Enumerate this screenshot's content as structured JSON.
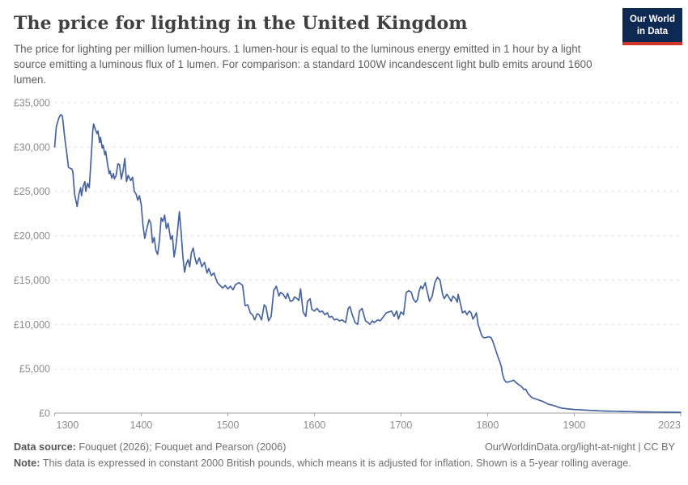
{
  "header": {
    "title": "The price for lighting in the United Kingdom",
    "subtitle": "The price for lighting per million lumen-hours. 1 lumen-hour is equal to the luminous energy emitted in 1 hour by a light source emitting a luminous flux of 1 lumen. For comparison: a standard 100W incandescent light bulb emits around 1600 lumen.",
    "logo": {
      "line1": "Our World",
      "line2": "in Data",
      "bg_color": "#0f2a52",
      "bar_color": "#d0362a"
    }
  },
  "chart_data": {
    "type": "line",
    "title": "The price for lighting in the United Kingdom",
    "xlabel": "",
    "ylabel": "",
    "unit": "constant 2000 British pounds per million lumen-hours",
    "xlim": [
      1300,
      2023
    ],
    "ylim": [
      0,
      35000
    ],
    "yticks": [
      0,
      5000,
      10000,
      15000,
      20000,
      25000,
      30000,
      35000
    ],
    "xticks": [
      1300,
      1400,
      1500,
      1600,
      1700,
      1800,
      1900,
      2023
    ],
    "grid": "dashed-horizontal",
    "legend": "none",
    "line_color": "#4664a0",
    "grid_color": "#dcdcdc",
    "axis_color": "#a2a2a2",
    "tick_color": "#8c8c8c",
    "series": [
      {
        "name": "Price of lighting in the United Kingdom",
        "points": [
          [
            1300,
            30000
          ],
          [
            1302,
            32300
          ],
          [
            1305,
            33300
          ],
          [
            1307,
            33650
          ],
          [
            1309,
            33500
          ],
          [
            1312,
            30800
          ],
          [
            1314,
            29300
          ],
          [
            1316,
            27700
          ],
          [
            1318,
            27600
          ],
          [
            1320,
            27500
          ],
          [
            1321,
            27200
          ],
          [
            1323,
            24700
          ],
          [
            1326,
            23300
          ],
          [
            1328,
            24700
          ],
          [
            1330,
            25400
          ],
          [
            1331,
            24500
          ],
          [
            1333,
            25600
          ],
          [
            1335,
            26100
          ],
          [
            1336,
            25000
          ],
          [
            1338,
            25900
          ],
          [
            1340,
            25400
          ],
          [
            1342,
            28500
          ],
          [
            1344,
            31800
          ],
          [
            1345,
            32600
          ],
          [
            1347,
            32000
          ],
          [
            1349,
            31500
          ],
          [
            1350,
            31800
          ],
          [
            1352,
            30500
          ],
          [
            1353,
            31100
          ],
          [
            1355,
            29900
          ],
          [
            1356,
            30200
          ],
          [
            1358,
            29100
          ],
          [
            1359,
            29500
          ],
          [
            1361,
            28100
          ],
          [
            1363,
            27000
          ],
          [
            1364,
            27300
          ],
          [
            1366,
            26500
          ],
          [
            1368,
            27000
          ],
          [
            1369,
            26400
          ],
          [
            1371,
            26800
          ],
          [
            1373,
            28100
          ],
          [
            1375,
            28000
          ],
          [
            1377,
            26400
          ],
          [
            1379,
            27300
          ],
          [
            1381,
            28700
          ],
          [
            1383,
            26100
          ],
          [
            1385,
            26800
          ],
          [
            1388,
            26200
          ],
          [
            1390,
            26600
          ],
          [
            1392,
            25000
          ],
          [
            1394,
            24700
          ],
          [
            1396,
            24000
          ],
          [
            1398,
            24500
          ],
          [
            1400,
            23500
          ],
          [
            1402,
            21200
          ],
          [
            1404,
            19700
          ],
          [
            1406,
            20600
          ],
          [
            1409,
            21800
          ],
          [
            1411,
            21400
          ],
          [
            1413,
            19200
          ],
          [
            1415,
            19800
          ],
          [
            1417,
            18300
          ],
          [
            1419,
            17900
          ],
          [
            1421,
            19500
          ],
          [
            1423,
            22000
          ],
          [
            1425,
            21600
          ],
          [
            1427,
            22300
          ],
          [
            1429,
            20800
          ],
          [
            1431,
            21400
          ],
          [
            1434,
            19600
          ],
          [
            1436,
            20000
          ],
          [
            1438,
            17600
          ],
          [
            1440,
            18800
          ],
          [
            1442,
            20600
          ],
          [
            1444,
            22700
          ],
          [
            1446,
            20500
          ],
          [
            1448,
            17800
          ],
          [
            1450,
            15900
          ],
          [
            1452,
            16800
          ],
          [
            1454,
            17300
          ],
          [
            1456,
            16500
          ],
          [
            1458,
            18100
          ],
          [
            1460,
            18600
          ],
          [
            1462,
            17500
          ],
          [
            1464,
            16800
          ],
          [
            1467,
            17500
          ],
          [
            1470,
            16500
          ],
          [
            1473,
            17000
          ],
          [
            1476,
            15800
          ],
          [
            1478,
            16300
          ],
          [
            1481,
            15500
          ],
          [
            1484,
            15800
          ],
          [
            1486,
            15200
          ],
          [
            1488,
            14700
          ],
          [
            1491,
            14400
          ],
          [
            1494,
            14100
          ],
          [
            1497,
            14400
          ],
          [
            1500,
            14000
          ],
          [
            1503,
            14300
          ],
          [
            1506,
            13900
          ],
          [
            1509,
            14500
          ],
          [
            1513,
            14700
          ],
          [
            1517,
            14400
          ],
          [
            1520,
            12100
          ],
          [
            1523,
            12200
          ],
          [
            1526,
            11300
          ],
          [
            1529,
            11000
          ],
          [
            1531,
            10500
          ],
          [
            1534,
            11200
          ],
          [
            1536,
            11100
          ],
          [
            1539,
            10500
          ],
          [
            1542,
            12200
          ],
          [
            1544,
            12000
          ],
          [
            1547,
            10400
          ],
          [
            1550,
            10900
          ],
          [
            1553,
            13800
          ],
          [
            1556,
            14300
          ],
          [
            1559,
            13200
          ],
          [
            1561,
            13600
          ],
          [
            1564,
            13400
          ],
          [
            1567,
            12900
          ],
          [
            1569,
            13500
          ],
          [
            1572,
            12600
          ],
          [
            1575,
            12700
          ],
          [
            1577,
            13100
          ],
          [
            1580,
            12900
          ],
          [
            1582,
            12700
          ],
          [
            1584,
            14000
          ],
          [
            1587,
            11400
          ],
          [
            1590,
            10900
          ],
          [
            1592,
            12600
          ],
          [
            1595,
            12900
          ],
          [
            1597,
            11700
          ],
          [
            1600,
            11500
          ],
          [
            1603,
            11800
          ],
          [
            1606,
            11400
          ],
          [
            1609,
            11500
          ],
          [
            1612,
            11100
          ],
          [
            1615,
            11300
          ],
          [
            1617,
            10800
          ],
          [
            1620,
            10900
          ],
          [
            1623,
            10500
          ],
          [
            1626,
            10600
          ],
          [
            1629,
            10400
          ],
          [
            1632,
            10500
          ],
          [
            1636,
            10200
          ],
          [
            1639,
            11800
          ],
          [
            1641,
            12000
          ],
          [
            1643,
            11300
          ],
          [
            1647,
            10200
          ],
          [
            1650,
            10000
          ],
          [
            1652,
            11500
          ],
          [
            1655,
            11800
          ],
          [
            1657,
            11100
          ],
          [
            1659,
            10400
          ],
          [
            1662,
            10200
          ],
          [
            1664,
            10000
          ],
          [
            1667,
            10400
          ],
          [
            1669,
            10200
          ],
          [
            1673,
            10500
          ],
          [
            1676,
            10400
          ],
          [
            1680,
            10900
          ],
          [
            1683,
            11300
          ],
          [
            1686,
            11400
          ],
          [
            1689,
            11500
          ],
          [
            1692,
            10900
          ],
          [
            1695,
            11500
          ],
          [
            1697,
            10600
          ],
          [
            1700,
            11400
          ],
          [
            1703,
            11100
          ],
          [
            1706,
            13600
          ],
          [
            1709,
            13800
          ],
          [
            1712,
            13600
          ],
          [
            1714,
            12900
          ],
          [
            1717,
            12500
          ],
          [
            1719,
            12800
          ],
          [
            1721,
            13800
          ],
          [
            1723,
            14300
          ],
          [
            1725,
            14000
          ],
          [
            1728,
            14700
          ],
          [
            1730,
            13800
          ],
          [
            1733,
            12600
          ],
          [
            1736,
            13200
          ],
          [
            1739,
            14700
          ],
          [
            1742,
            15300
          ],
          [
            1745,
            15000
          ],
          [
            1748,
            13400
          ],
          [
            1750,
            12900
          ],
          [
            1753,
            13400
          ],
          [
            1755,
            13100
          ],
          [
            1758,
            12600
          ],
          [
            1760,
            13200
          ],
          [
            1763,
            12900
          ],
          [
            1765,
            12500
          ],
          [
            1766,
            13400
          ],
          [
            1768,
            12600
          ],
          [
            1771,
            11300
          ],
          [
            1774,
            11500
          ],
          [
            1776,
            11100
          ],
          [
            1779,
            11500
          ],
          [
            1781,
            11300
          ],
          [
            1783,
            10600
          ],
          [
            1785,
            10900
          ],
          [
            1787,
            11300
          ],
          [
            1789,
            10000
          ],
          [
            1791,
            9400
          ],
          [
            1793,
            8800
          ],
          [
            1795,
            8500
          ],
          [
            1798,
            8500
          ],
          [
            1801,
            8600
          ],
          [
            1804,
            8500
          ],
          [
            1806,
            8100
          ],
          [
            1809,
            7200
          ],
          [
            1812,
            6300
          ],
          [
            1814,
            5800
          ],
          [
            1816,
            5200
          ],
          [
            1817,
            4500
          ],
          [
            1819,
            3800
          ],
          [
            1821,
            3500
          ],
          [
            1824,
            3500
          ],
          [
            1827,
            3600
          ],
          [
            1830,
            3700
          ],
          [
            1832,
            3500
          ],
          [
            1836,
            3200
          ],
          [
            1839,
            3000
          ],
          [
            1842,
            2650
          ],
          [
            1844,
            2700
          ],
          [
            1846,
            2300
          ],
          [
            1848,
            2050
          ],
          [
            1851,
            1750
          ],
          [
            1855,
            1600
          ],
          [
            1858,
            1500
          ],
          [
            1861,
            1400
          ],
          [
            1864,
            1300
          ],
          [
            1866,
            1200
          ],
          [
            1870,
            1000
          ],
          [
            1874,
            900
          ],
          [
            1878,
            800
          ],
          [
            1882,
            650
          ],
          [
            1886,
            550
          ],
          [
            1890,
            500
          ],
          [
            1895,
            450
          ],
          [
            1900,
            400
          ],
          [
            1905,
            380
          ],
          [
            1910,
            350
          ],
          [
            1915,
            320
          ],
          [
            1920,
            290
          ],
          [
            1925,
            270
          ],
          [
            1930,
            250
          ],
          [
            1935,
            230
          ],
          [
            1940,
            220
          ],
          [
            1945,
            210
          ],
          [
            1950,
            200
          ],
          [
            1955,
            185
          ],
          [
            1960,
            175
          ],
          [
            1965,
            160
          ],
          [
            1970,
            150
          ],
          [
            1975,
            140
          ],
          [
            1980,
            130
          ],
          [
            1985,
            125
          ],
          [
            1990,
            115
          ],
          [
            1995,
            110
          ],
          [
            2000,
            105
          ],
          [
            2005,
            100
          ],
          [
            2010,
            95
          ],
          [
            2015,
            90
          ],
          [
            2020,
            85
          ],
          [
            2023,
            85
          ]
        ]
      }
    ]
  },
  "footer": {
    "source_label": "Data source:",
    "source_text": " Fouquet (2026); Fouquet and Pearson (2006)",
    "link_text": "OurWorldinData.org/light-at-night | CC BY",
    "note_label": "Note:",
    "note_text": " This data is expressed in constant 2000 British pounds, which means it is adjusted for inflation. Shown is a 5-year rolling average."
  }
}
